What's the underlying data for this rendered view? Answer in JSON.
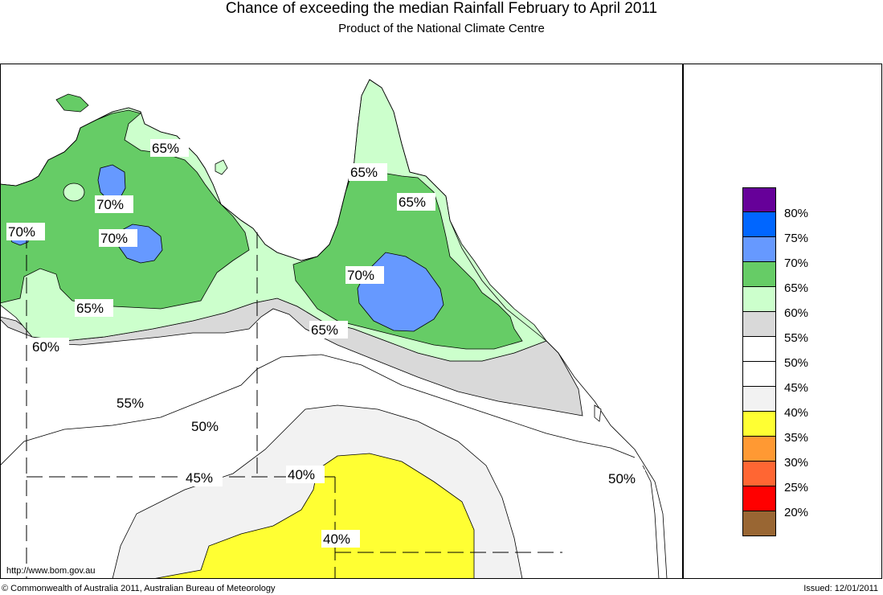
{
  "header": {
    "title": "Chance of exceeding the median Rainfall February to April 2011",
    "subtitle": "Product of the National Climate Centre"
  },
  "map": {
    "url": "http://www.bom.gov.au",
    "contour_labels": [
      "65%",
      "65%",
      "65%",
      "70%",
      "70%",
      "70%",
      "70%",
      "65%",
      "65%",
      "60%",
      "55%",
      "50%",
      "45%",
      "40%",
      "40%",
      "50%"
    ],
    "colors": {
      "c40": "#ffff33",
      "c45": "#f2f2f2",
      "c50": "#ffffff",
      "c55": "#d9d9d9",
      "c60": "#ccffcc",
      "c65": "#66cc66",
      "c70": "#6699ff"
    }
  },
  "legend": {
    "labels": [
      "80%",
      "75%",
      "70%",
      "65%",
      "60%",
      "55%",
      "50%",
      "45%",
      "40%",
      "35%",
      "30%",
      "25%",
      "20%"
    ],
    "swatch_colors": [
      "#660099",
      "#0066ff",
      "#6699ff",
      "#66cc66",
      "#ccffcc",
      "#d9d9d9",
      "#ffffff",
      "#ffffff",
      "#f2f2f2",
      "#ffff33",
      "#ff9933",
      "#ff6633",
      "#ff0000",
      "#996633"
    ]
  },
  "footer": {
    "copyright": "© Commonwealth of Australia 2011, Australian Bureau of Meteorology",
    "issued": "Issued: 12/01/2011"
  }
}
